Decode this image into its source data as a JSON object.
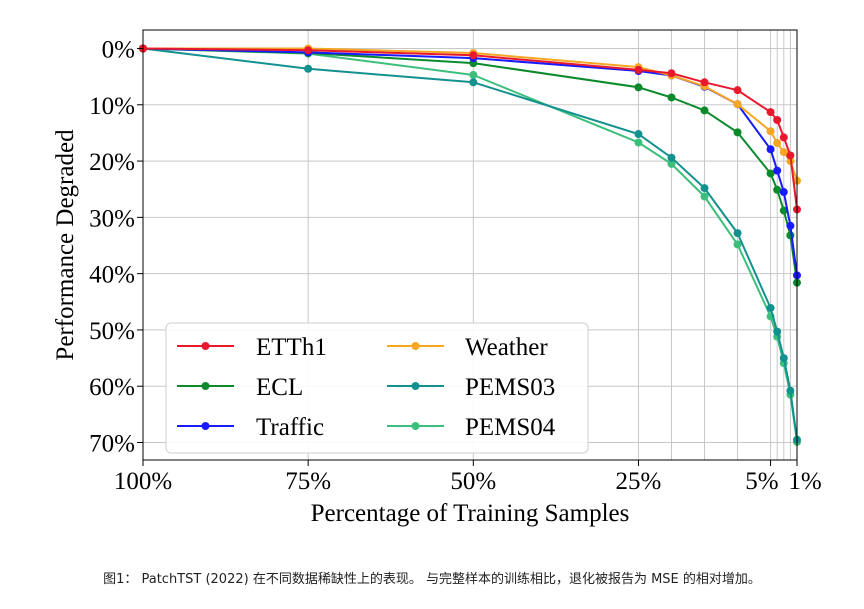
{
  "chart_data": {
    "type": "line",
    "xlabel": "Percentage of Training Samples",
    "ylabel": "Performance Degraded",
    "x_ticks": [
      {
        "value": 100,
        "label": "100%"
      },
      {
        "value": 75,
        "label": "75%"
      },
      {
        "value": 50,
        "label": "50%"
      },
      {
        "value": 25,
        "label": "25%"
      },
      {
        "value": 5,
        "label": "5%"
      },
      {
        "value": 1,
        "label": "1%"
      }
    ],
    "x_extra_gridlines": [
      20,
      15,
      10,
      4,
      3,
      2
    ],
    "y_ticks": [
      {
        "value": 0,
        "label": "0%"
      },
      {
        "value": 10,
        "label": "10%"
      },
      {
        "value": 20,
        "label": "20%"
      },
      {
        "value": 30,
        "label": "30%"
      },
      {
        "value": 40,
        "label": "40%"
      },
      {
        "value": 50,
        "label": "50%"
      },
      {
        "value": 60,
        "label": "60%"
      },
      {
        "value": 70,
        "label": "70%"
      }
    ],
    "xlim": [
      100,
      1
    ],
    "ylim": [
      0,
      70
    ],
    "grid": true,
    "legend_position": "bottom-left",
    "x": [
      100,
      75,
      50,
      25,
      20,
      15,
      10,
      5,
      4,
      3,
      2,
      1
    ],
    "series": [
      {
        "name": "ETTh1",
        "color": "#e8192c",
        "values": [
          0,
          0.3,
          1.2,
          3.8,
          4.4,
          6.0,
          7.4,
          11.3,
          12.7,
          15.8,
          19.0,
          28.6
        ]
      },
      {
        "name": "Weather",
        "color": "#f5a623",
        "values": [
          0,
          0,
          0.8,
          3.3,
          4.8,
          6.7,
          9.9,
          14.7,
          16.8,
          18.4,
          20.0,
          23.5
        ]
      },
      {
        "name": "ECL",
        "color": "#0a8a2a",
        "values": [
          0,
          0.8,
          2.6,
          6.9,
          8.7,
          11.0,
          14.9,
          22.2,
          25.1,
          28.8,
          33.2,
          41.6
        ]
      },
      {
        "name": "PEMS03",
        "color": "#13918f",
        "values": [
          0,
          3.6,
          6.0,
          15.2,
          19.4,
          24.8,
          32.8,
          46.1,
          50.3,
          55.0,
          60.8,
          69.5
        ]
      },
      {
        "name": "Traffic",
        "color": "#1a1aff",
        "values": [
          0,
          0.7,
          1.7,
          4.0,
          4.8,
          6.8,
          9.9,
          17.9,
          21.7,
          25.5,
          31.5,
          40.3
        ]
      },
      {
        "name": "PEMS04",
        "color": "#3cbf7c",
        "values": [
          0,
          0.9,
          4.7,
          16.7,
          20.5,
          26.3,
          34.8,
          47.6,
          51.2,
          55.9,
          61.5,
          69.9
        ]
      }
    ]
  },
  "caption": "图1： PatchTST (2022) 在不同数据稀缺性上的表现。 与完整样本的训练相比，退化被报告为 MSE 的相对增加。"
}
